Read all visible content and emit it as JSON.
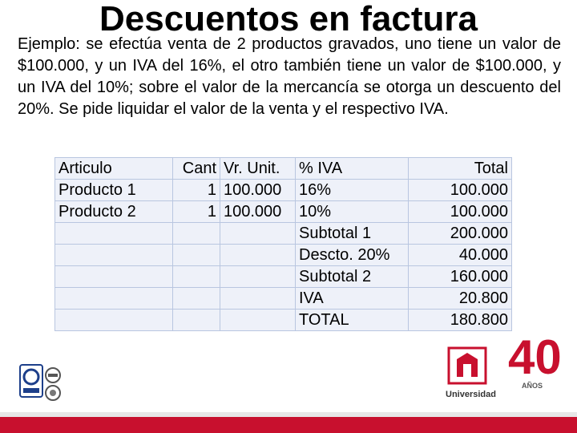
{
  "title": "Descuentos en factura",
  "paragraph": "Ejemplo: se efectúa venta de 2 productos gravados, uno tiene un valor de $100.000, y un IVA del 16%, el otro también tiene un valor de $100.000, y un IVA del 10%; sobre el valor de la mercancía se otorga un descuento del 20%. Se pide liquidar el valor de la venta y el respectivo IVA.",
  "table": {
    "rows": [
      [
        "Articulo",
        "Cant",
        "Vr. Unit.",
        "% IVA",
        "Total"
      ],
      [
        "Producto 1",
        "1",
        "100.000",
        "16%",
        "100.000"
      ],
      [
        "Producto 2",
        "1",
        "100.000",
        "10%",
        "100.000"
      ],
      [
        "",
        "",
        "",
        "Subtotal 1",
        "200.000"
      ],
      [
        "",
        "",
        "",
        "Descto. 20%",
        "40.000"
      ],
      [
        "",
        "",
        "",
        "Subtotal 2",
        "160.000"
      ],
      [
        "",
        "",
        "",
        "IVA",
        "20.800"
      ],
      [
        "",
        "",
        "",
        "TOTAL",
        "180.800"
      ]
    ]
  },
  "logos": {
    "university_name": "Universidad",
    "years_number": "40",
    "years_word": "AÑOS"
  },
  "colors": {
    "table_bg": "#eef1f9",
    "table_border": "#b9c6e0",
    "brand_red": "#c8102e"
  }
}
